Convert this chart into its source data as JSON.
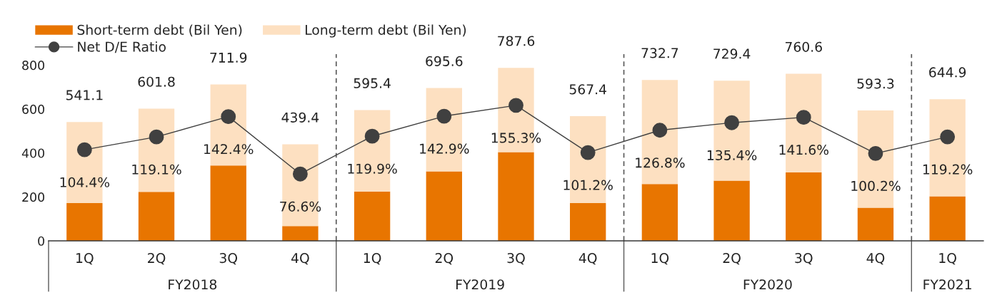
{
  "chart_data": {
    "type": "bar",
    "stacked": true,
    "categories": [
      "1Q",
      "2Q",
      "3Q",
      "4Q",
      "1Q",
      "2Q",
      "3Q",
      "4Q",
      "1Q",
      "2Q",
      "3Q",
      "4Q",
      "1Q"
    ],
    "series": [
      {
        "name": "Short-term debt (Bil Yen)",
        "color": "#e87500",
        "values": [
          172,
          223,
          343,
          67,
          225,
          316,
          404,
          172,
          259,
          274,
          312,
          151,
          203
        ]
      },
      {
        "name": "Long-term debt (Bil Yen)",
        "color": "#fde0c1",
        "values": [
          369.1,
          378.8,
          368.9,
          372.4,
          370.4,
          379.6,
          383.6,
          395.4,
          473.7,
          455.4,
          448.6,
          442.3,
          441.9
        ]
      },
      {
        "name": "Net D/E Ratio",
        "type": "line",
        "axis": "y2",
        "color": "#404040",
        "marker": "circle",
        "line_style": "solid",
        "values": [
          104.4,
          119.1,
          142.4,
          76.6,
          119.9,
          142.9,
          155.3,
          101.2,
          126.8,
          135.4,
          141.6,
          100.2,
          119.2
        ],
        "value_labels": [
          "104.4%",
          "119.1%",
          "142.4%",
          "76.6%",
          "119.9%",
          "142.9%",
          "155.3%",
          "101.2%",
          "126.8%",
          "135.4%",
          "141.6%",
          "100.2%",
          "119.2%"
        ]
      }
    ],
    "totals": [
      "541.1",
      "601.8",
      "711.9",
      "439.4",
      "595.4",
      "695.6",
      "787.6",
      "567.4",
      "732.7",
      "729.4",
      "760.6",
      "593.3",
      "644.9"
    ],
    "annotations": [
      "FY2018",
      "FY2019",
      "FY2020",
      "FY2021"
    ],
    "ylim": [
      0,
      850
    ],
    "yticks": [
      0,
      200,
      400,
      600,
      800
    ],
    "y2lim": [
      0,
      214
    ],
    "grid": false,
    "legend": "top left"
  }
}
